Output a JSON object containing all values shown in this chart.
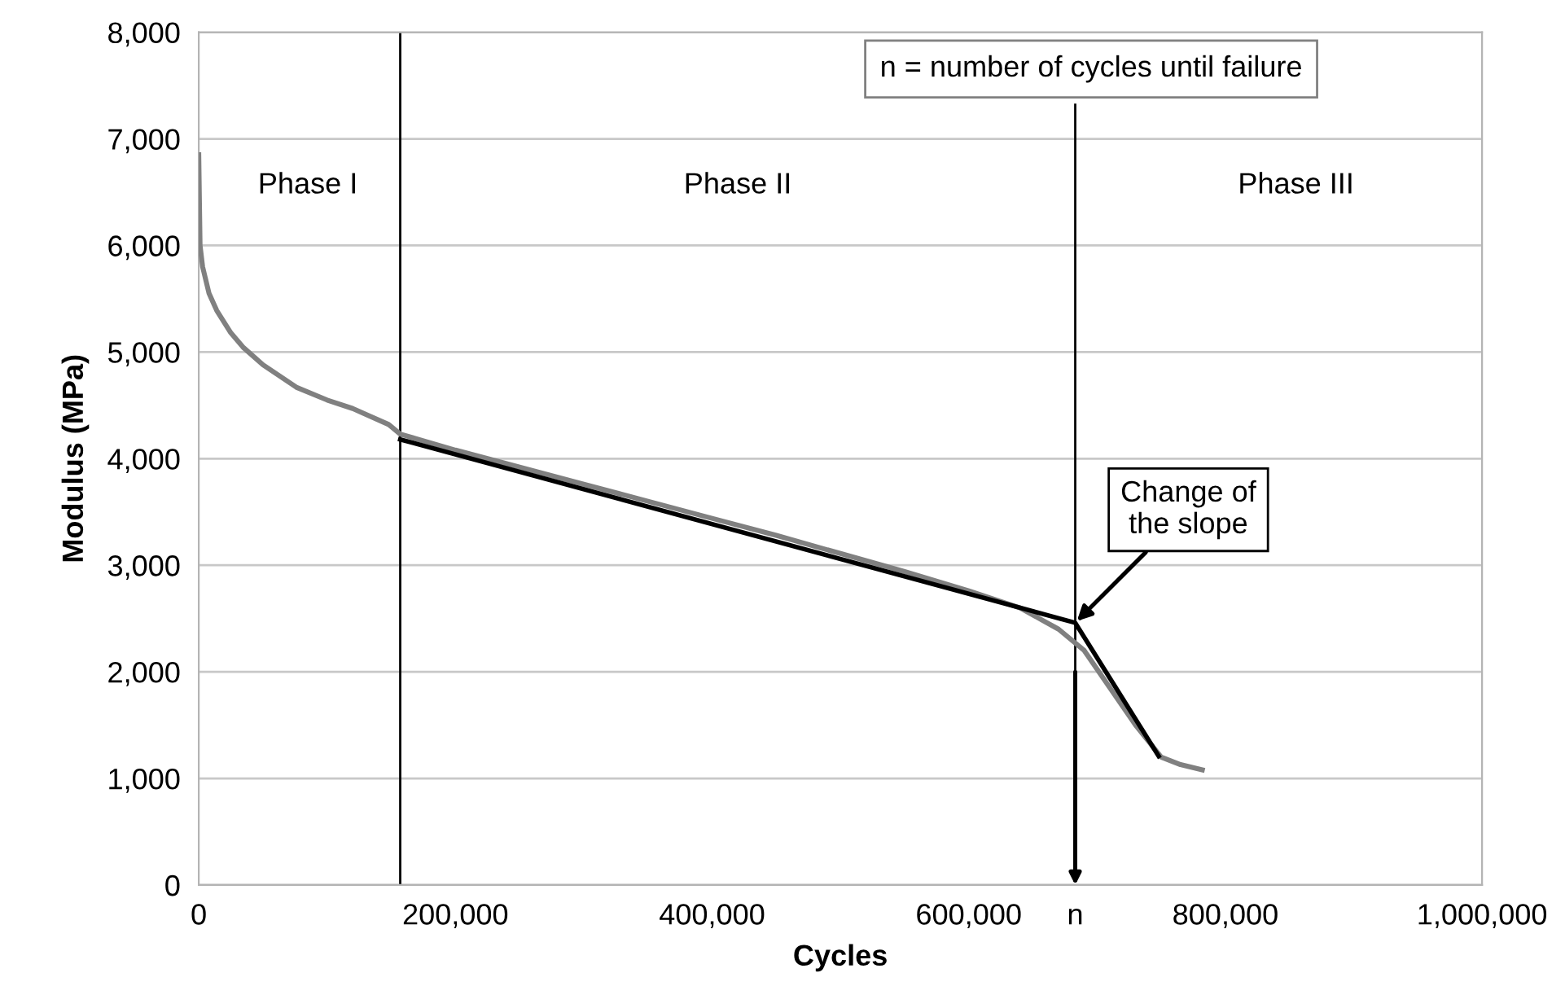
{
  "chart_data": {
    "type": "line",
    "xlabel": "Cycles",
    "ylabel": "Modulus (MPa)",
    "series": [
      {
        "color": "#808080",
        "x": [
          0,
          1000,
          3000,
          8000,
          14000,
          25000,
          35000,
          50000,
          76000,
          100000,
          120000,
          148000,
          157000,
          200000,
          250000,
          300000,
          350000,
          400000,
          450000,
          500000,
          550000,
          600000,
          640000,
          670000,
          690000,
          710000,
          730000,
          750000,
          765000,
          782000
        ],
        "values": [
          6850,
          6000,
          5800,
          5550,
          5390,
          5180,
          5040,
          4880,
          4670,
          4550,
          4470,
          4320,
          4230,
          4080,
          3920,
          3760,
          3600,
          3440,
          3280,
          3110,
          2940,
          2760,
          2600,
          2400,
          2200,
          1850,
          1500,
          1200,
          1130,
          1080
        ]
      },
      {
        "color": "#000000",
        "x": [
          157000,
          683000,
          748000
        ],
        "values": [
          4180,
          2460,
          1210
        ]
      }
    ],
    "xlim": [
      0,
      1000000
    ],
    "ylim": [
      0,
      8000
    ],
    "xticks": [
      0,
      {
        "value": 200000,
        "label": "200,000"
      },
      {
        "value": 400000,
        "label": "400,000"
      },
      {
        "value": 600000,
        "label": "600,000"
      },
      {
        "value": 800000,
        "label": "800,000"
      },
      {
        "value": 1000000,
        "label": "1,000,000"
      }
    ],
    "yticks": [
      0,
      {
        "value": 1000,
        "label": "1,000"
      },
      {
        "value": 2000,
        "label": "2,000"
      },
      {
        "value": 3000,
        "label": "3,000"
      },
      {
        "value": 4000,
        "label": "4,000"
      },
      {
        "value": 5000,
        "label": "5,000"
      },
      {
        "value": 6000,
        "label": "6,000"
      },
      {
        "value": 7000,
        "label": "7,000"
      },
      {
        "value": 8000,
        "label": "8,000"
      }
    ],
    "grid": "y",
    "marker": "none",
    "line_style": "solid",
    "ref_lines": [
      {
        "axis": "x",
        "value": 157000,
        "color": "#000000"
      },
      {
        "axis": "x",
        "value": 683000,
        "label": "n",
        "color": "#000000"
      }
    ],
    "annotations": [
      "Phase I",
      "Phase II",
      "Phase III",
      "n = number of cycles until failure",
      {
        "text": "Change of the slope",
        "x": 683000,
        "y": 2460
      }
    ]
  }
}
